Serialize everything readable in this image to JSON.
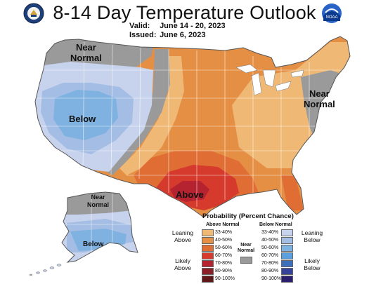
{
  "header": {
    "title": "8-14 Day Temperature Outlook",
    "valid_label": "Valid:",
    "valid_value": "June 14 - 20, 2023",
    "issued_label": "Issued:",
    "issued_value": "June 6, 2023"
  },
  "logos": {
    "left": "doc-seal-icon",
    "right": "noaa-logo-icon",
    "right_text": "NOAA"
  },
  "map": {
    "labels": {
      "near_normal_nw": [
        "Near",
        "Normal"
      ],
      "near_normal_ne": [
        "Near",
        "Normal"
      ],
      "near_normal_ak": [
        "Near",
        "Normal"
      ],
      "below_west": "Below",
      "below_ak": "Below",
      "above_south": "Above"
    }
  },
  "legend": {
    "title": "Probability (Percent Chance)",
    "above_header": "Above Normal",
    "below_header": "Below Normal",
    "near_normal": [
      "Near",
      "Normal"
    ],
    "leaning_above": [
      "Leaning",
      "Above"
    ],
    "likely_above": [
      "Likely",
      "Above"
    ],
    "leaning_below": [
      "Leaning",
      "Below"
    ],
    "likely_below": [
      "Likely",
      "Below"
    ],
    "above_ranges": [
      "33-40%",
      "40-50%",
      "50-60%",
      "60-70%",
      "70-80%",
      "80-90%",
      "90-100%"
    ],
    "below_ranges": [
      "33-40%",
      "40-50%",
      "50-60%",
      "60-70%",
      "70-80%",
      "80-90%",
      "90-100%"
    ],
    "above_colors": [
      "#efb874",
      "#e58f45",
      "#e06d34",
      "#d53a2c",
      "#b52331",
      "#8a1f28",
      "#5e1616"
    ],
    "below_colors": [
      "#c7d2ec",
      "#a3bde4",
      "#7fb2e0",
      "#5aa0de",
      "#3c6fbc",
      "#35449a",
      "#2a1f6d"
    ],
    "near_color": "#9a9a9a"
  }
}
